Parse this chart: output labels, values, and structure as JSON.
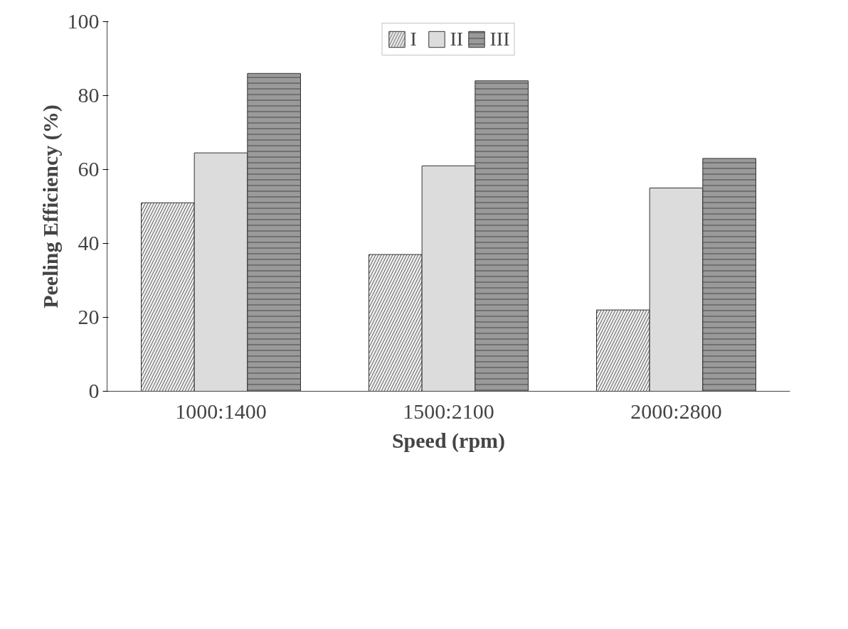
{
  "chart_data": {
    "type": "bar",
    "xlabel": "Speed (rpm)",
    "ylabel": "Peeling Efficiency (%)",
    "categories": [
      "1000:1400",
      "1500:2100",
      "2000:2800"
    ],
    "series": [
      {
        "name": "I",
        "color": "#eeeeee",
        "values": [
          51,
          37,
          22
        ]
      },
      {
        "name": "II",
        "color": "#dcdcdc",
        "values": [
          64.5,
          61,
          55
        ]
      },
      {
        "name": "III",
        "color": "#9a9a9a",
        "values": [
          86,
          84,
          63
        ]
      }
    ],
    "ylim": [
      0,
      100
    ],
    "yticks": [
      0,
      20,
      40,
      60,
      80,
      100
    ],
    "grid": false,
    "legend": "top"
  }
}
